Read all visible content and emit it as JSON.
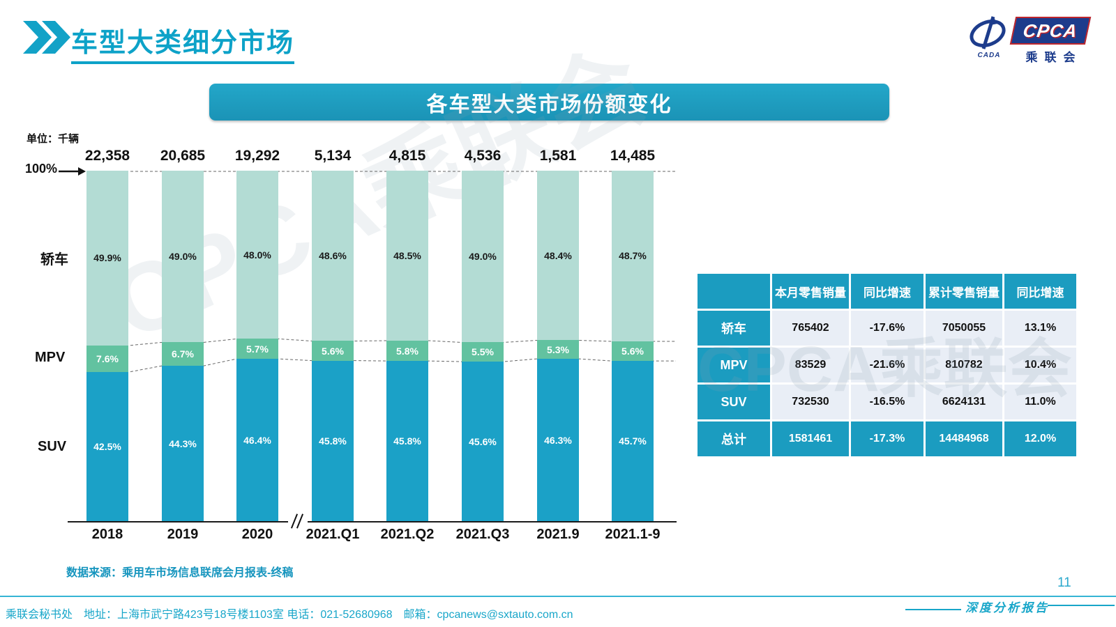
{
  "page": {
    "title": "车型大类细分市场",
    "page_number": "11",
    "report_label": "深度分析报告",
    "watermark": "CPCA乘联会",
    "source_note": "数据来源：乘用车市场信息联席会月报表-终稿",
    "footer_text": "乘联会秘书处　地址：上海市武宁路423号18号楼1103室 电话：021-52680968　邮箱：cpcanews@sxtauto.com.cn"
  },
  "logo": {
    "cpca": "CPCA",
    "cn": "乘联会",
    "cada": "CADA"
  },
  "banner": {
    "title": "各车型大类市场份额变化"
  },
  "chart_data": {
    "type": "bar",
    "stacked": true,
    "unit_label": "单位：千辆",
    "axis_top_label": "100%",
    "categories": [
      "2018",
      "2019",
      "2020",
      "2021.Q1",
      "2021.Q2",
      "2021.Q3",
      "2021.9",
      "2021.1-9"
    ],
    "totals": [
      22358,
      20685,
      19292,
      5134,
      4815,
      4536,
      1581,
      14485
    ],
    "totals_display": [
      "22,358",
      "20,685",
      "19,292",
      "5,134",
      "4,815",
      "4,536",
      "1,581",
      "14,485"
    ],
    "axis_break_after_index": 2,
    "ylim": [
      0,
      100
    ],
    "legend_position": "left-of-bars",
    "series": [
      {
        "name": "轿车",
        "color": "#b3dcd4",
        "label_color": "#1a1a1a",
        "values": [
          49.9,
          49.0,
          48.0,
          48.6,
          48.5,
          49.0,
          48.4,
          48.7
        ]
      },
      {
        "name": "MPV",
        "color": "#62c2a0",
        "label_color": "#ffffff",
        "values": [
          7.6,
          6.7,
          5.7,
          5.6,
          5.8,
          5.5,
          5.3,
          5.6
        ]
      },
      {
        "name": "SUV",
        "color": "#1ba1c7",
        "label_color": "#ffffff",
        "values": [
          42.5,
          44.3,
          46.4,
          45.8,
          45.8,
          45.6,
          46.3,
          45.7
        ]
      }
    ]
  },
  "table": {
    "headers": [
      "",
      "本月零售销量",
      "同比增速",
      "累计零售销量",
      "同比增速"
    ],
    "rows": [
      {
        "label": "轿车",
        "cells": [
          "765402",
          "-17.6%",
          "7050055",
          "13.1%"
        ],
        "total": false
      },
      {
        "label": "MPV",
        "cells": [
          "83529",
          "-21.6%",
          "810782",
          "10.4%"
        ],
        "total": false
      },
      {
        "label": "SUV",
        "cells": [
          "732530",
          "-16.5%",
          "6624131",
          "11.0%"
        ],
        "total": false
      },
      {
        "label": "总计",
        "cells": [
          "1581461",
          "-17.3%",
          "14484968",
          "12.0%"
        ],
        "total": true
      }
    ]
  },
  "colors": {
    "accent_teal": "#1b9cc0",
    "title_teal": "#0da2c8",
    "table_cell_bg": "#e9eef6",
    "logo_navy": "#1d3c8c",
    "logo_red": "#c0272d"
  }
}
